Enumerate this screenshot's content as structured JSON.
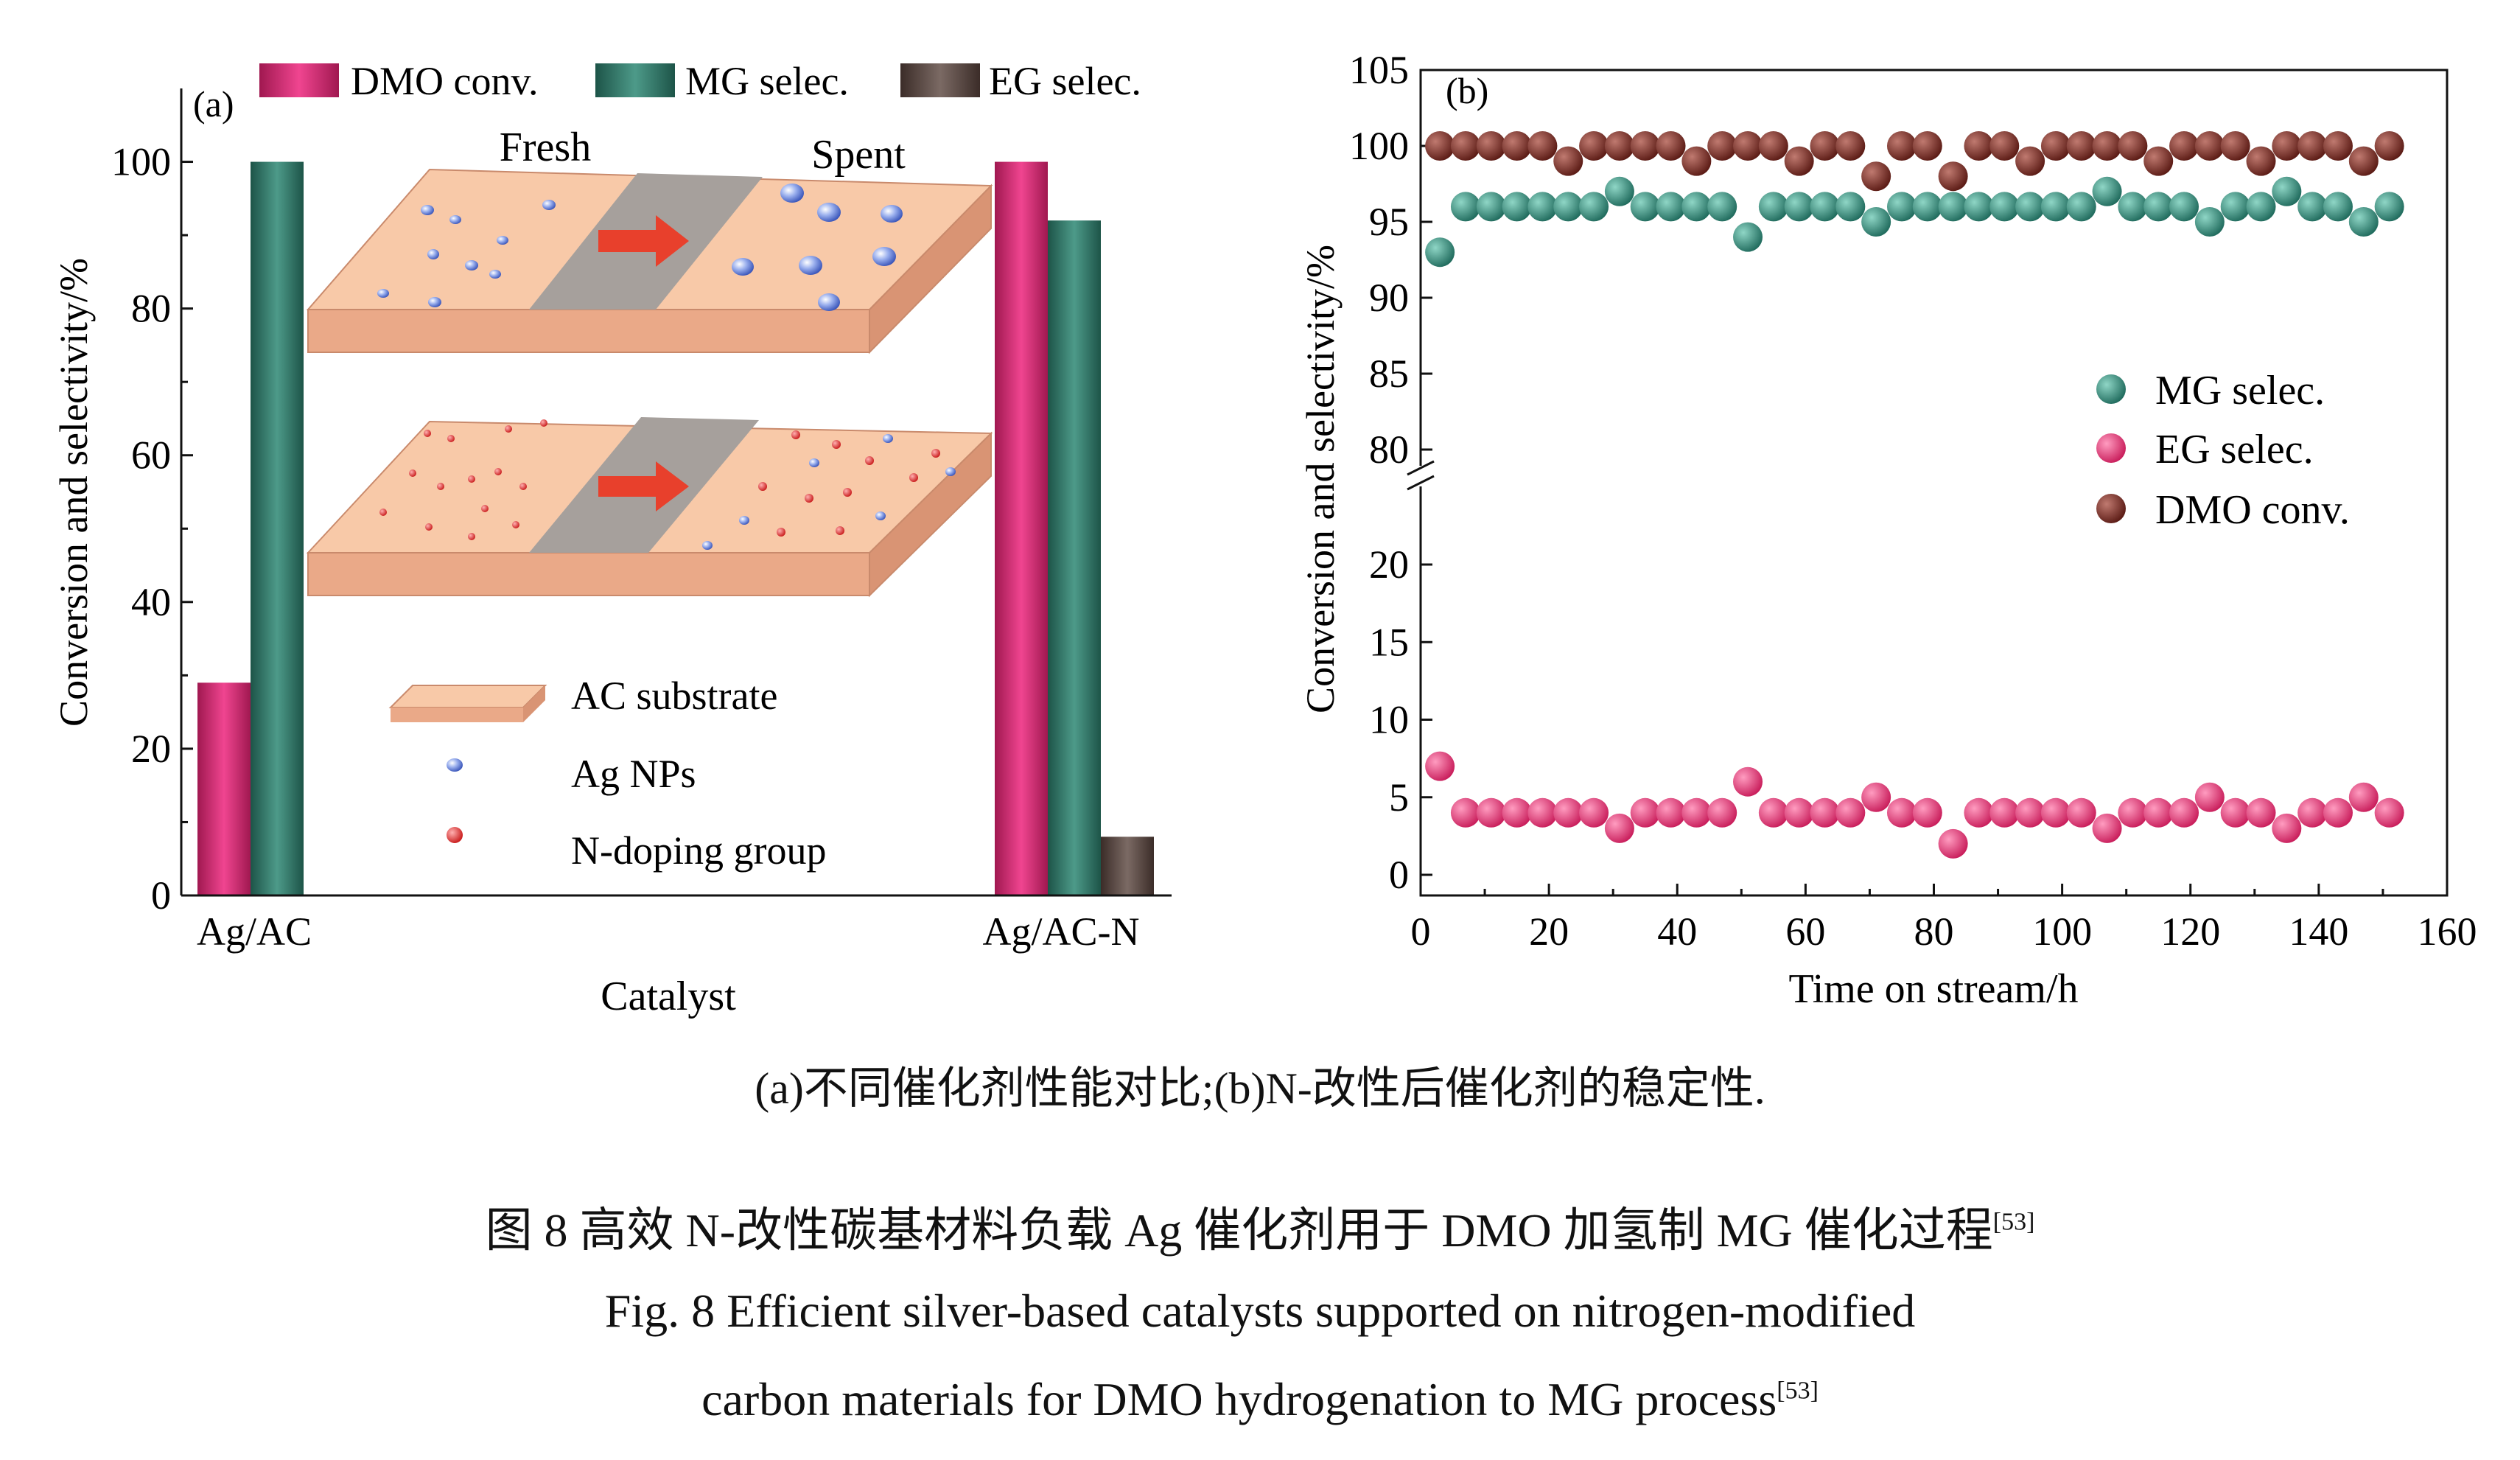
{
  "chart_data": [
    {
      "panel_label": "(a)",
      "type": "bar",
      "categories": [
        "Ag/AC",
        "Ag/AC-N"
      ],
      "series": [
        {
          "name": "DMO conv.",
          "values": [
            29,
            100
          ],
          "color": "#d9327a"
        },
        {
          "name": "MG selec.",
          "values": [
            100,
            92
          ],
          "color": "#2f7a6c"
        },
        {
          "name": "EG selec.",
          "values": [
            0,
            8
          ],
          "color": "#5b4a45"
        }
      ],
      "xlabel": "Catalyst",
      "ylabel": "Conversion and selectivity/%",
      "ylim": [
        0,
        110
      ],
      "yticks": [
        0,
        20,
        40,
        60,
        80,
        100
      ],
      "legend_position": "top",
      "inset": {
        "fresh_label": "Fresh",
        "spent_label": "Spent",
        "legend": [
          {
            "label": "AC substrate",
            "icon": "substrate-slab-icon"
          },
          {
            "label": "Ag NPs",
            "icon": "blue-nanoparticle-icon"
          },
          {
            "label": "N-doping group",
            "icon": "red-dot-icon"
          }
        ],
        "colors": {
          "substrate": "#f8c9a8",
          "band": "#a6a09c",
          "arrow": "#e8402c",
          "ag": "#6b86d8",
          "n_dope": "#e03030"
        }
      }
    },
    {
      "panel_label": "(b)",
      "type": "scatter",
      "xlabel": "Time on stream/h",
      "ylabel": "Conversion and selectivity/%",
      "xlim": [
        0,
        160
      ],
      "xticks": [
        0,
        20,
        40,
        60,
        80,
        100,
        120,
        140,
        160
      ],
      "ylim_lower": [
        -2,
        22
      ],
      "yticks_lower": [
        0,
        5,
        10,
        15,
        20
      ],
      "ylim_upper": [
        78,
        105
      ],
      "yticks_upper": [
        80,
        85,
        90,
        95,
        100,
        105
      ],
      "axis_break": true,
      "legend_position": "right-middle",
      "x": [
        3,
        7,
        11,
        15,
        19,
        23,
        27,
        31,
        35,
        39,
        43,
        47,
        51,
        55,
        59,
        63,
        67,
        71,
        75,
        79,
        83,
        87,
        91,
        95,
        99,
        103,
        107,
        111,
        115,
        119,
        123,
        127,
        131,
        135,
        139,
        143,
        147,
        151
      ],
      "series": [
        {
          "name": "MG selec.",
          "color": "#2f8a78",
          "values": [
            93,
            96,
            96,
            96,
            96,
            96,
            96,
            97,
            96,
            96,
            96,
            96,
            94,
            96,
            96,
            96,
            96,
            95,
            96,
            96,
            96,
            96,
            96,
            96,
            96,
            96,
            97,
            96,
            96,
            96,
            95,
            96,
            96,
            97,
            96,
            96,
            95,
            96
          ]
        },
        {
          "name": "EG selec.",
          "color": "#e8306e",
          "values": [
            7,
            4,
            4,
            4,
            4,
            4,
            4,
            3,
            4,
            4,
            4,
            4,
            6,
            4,
            4,
            4,
            4,
            5,
            4,
            4,
            2,
            4,
            4,
            4,
            4,
            4,
            3,
            4,
            4,
            4,
            5,
            4,
            4,
            3,
            4,
            4,
            5,
            4
          ]
        },
        {
          "name": "DMO conv.",
          "color": "#7a2a22",
          "values": [
            100,
            100,
            100,
            100,
            100,
            99,
            100,
            100,
            100,
            100,
            99,
            100,
            100,
            100,
            99,
            100,
            100,
            98,
            100,
            100,
            98,
            100,
            100,
            99,
            100,
            100,
            100,
            100,
            99,
            100,
            100,
            100,
            99,
            100,
            100,
            100,
            99,
            100
          ]
        }
      ]
    }
  ],
  "captions": {
    "sub": "(a)不同催化剂性能对比;(b)N-改性后催化剂的稳定性.",
    "zh": "图 8    高效 N-改性碳基材料负载 Ag 催化剂用于 DMO 加氢制 MG 催化过程",
    "zh_ref": "[53]",
    "en1": "Fig. 8   Efficient silver-based catalysts supported on nitrogen-modified",
    "en2": "carbon materials for DMO hydrogenation to MG process",
    "en_ref": "[53]"
  }
}
